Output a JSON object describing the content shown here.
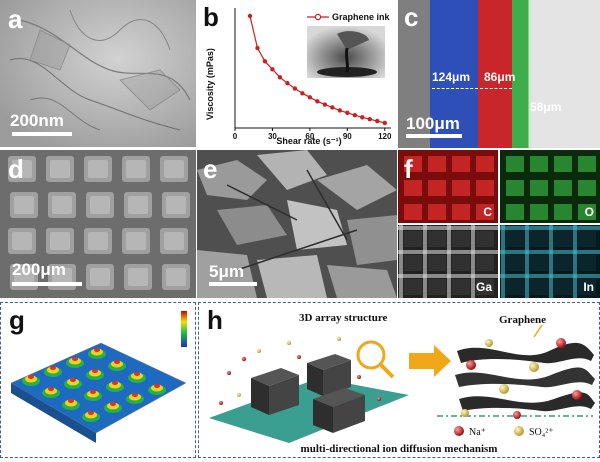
{
  "panels": {
    "a": {
      "label": "a",
      "scale": "200nm"
    },
    "b": {
      "label": "b"
    },
    "c": {
      "label": "c",
      "scale": "100μm",
      "thickness_1": "124μm",
      "thickness_2": "86μm",
      "thickness_3": "58μm"
    },
    "d": {
      "label": "d",
      "scale": "200μm"
    },
    "e": {
      "label": "e",
      "scale": "5μm"
    },
    "f": {
      "label": "f",
      "elements": [
        "C",
        "O",
        "Ga",
        "In"
      ]
    },
    "g": {
      "label": "g"
    },
    "h": {
      "label": "h",
      "title_left": "3D array structure",
      "title_right": "Graphene",
      "legend_na": "Na⁺",
      "legend_so4": "SO₄²⁺",
      "caption": "multi-directional ion diffusion mechanism"
    }
  },
  "colors": {
    "red_line": "#cc1f1f",
    "panel_border": "#3a5fa0",
    "arrow_orange": "#f0a818",
    "platform": "#3a9e90"
  },
  "chart_data": {
    "type": "line",
    "xlabel": "Shear rate (s⁻¹)",
    "ylabel": "Viscosity (mPas)",
    "xlim": [
      0,
      125
    ],
    "xticks": [
      0,
      30,
      60,
      90,
      120
    ],
    "series": [
      {
        "name": "Graphene ink",
        "x": [
          12,
          18,
          24,
          30,
          36,
          42,
          48,
          54,
          60,
          66,
          72,
          78,
          84,
          90,
          96,
          102,
          108,
          114,
          120
        ],
        "y": [
          520,
          400,
          350,
          320,
          290,
          268,
          248,
          230,
          215,
          200,
          188,
          177,
          166,
          157,
          148,
          140,
          133,
          126,
          119
        ]
      }
    ]
  }
}
